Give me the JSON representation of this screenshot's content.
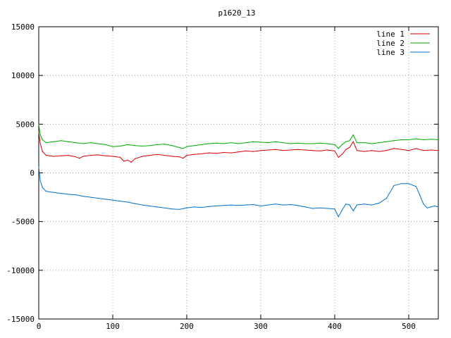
{
  "chart_data": {
    "type": "line",
    "title": "p1620_13",
    "xlabel": "",
    "ylabel": "",
    "xlim": [
      0,
      540
    ],
    "ylim": [
      -15000,
      15000
    ],
    "xticks": [
      0,
      100,
      200,
      300,
      400,
      500
    ],
    "yticks": [
      -15000,
      -10000,
      -5000,
      0,
      5000,
      10000,
      15000
    ],
    "grid": true,
    "legend_position": "top-right",
    "series": [
      {
        "name": "line 1",
        "color": "#dd0000",
        "points": [
          [
            0,
            4200
          ],
          [
            2,
            3000
          ],
          [
            5,
            2200
          ],
          [
            10,
            1800
          ],
          [
            20,
            1700
          ],
          [
            30,
            1750
          ],
          [
            40,
            1800
          ],
          [
            50,
            1650
          ],
          [
            55,
            1500
          ],
          [
            60,
            1700
          ],
          [
            70,
            1800
          ],
          [
            80,
            1850
          ],
          [
            90,
            1750
          ],
          [
            100,
            1700
          ],
          [
            110,
            1600
          ],
          [
            115,
            1200
          ],
          [
            120,
            1300
          ],
          [
            125,
            1100
          ],
          [
            130,
            1450
          ],
          [
            140,
            1700
          ],
          [
            150,
            1800
          ],
          [
            160,
            1900
          ],
          [
            170,
            1800
          ],
          [
            180,
            1700
          ],
          [
            190,
            1650
          ],
          [
            195,
            1500
          ],
          [
            200,
            1800
          ],
          [
            210,
            1900
          ],
          [
            220,
            1950
          ],
          [
            230,
            2050
          ],
          [
            240,
            2000
          ],
          [
            250,
            2100
          ],
          [
            260,
            2050
          ],
          [
            270,
            2150
          ],
          [
            280,
            2250
          ],
          [
            290,
            2200
          ],
          [
            300,
            2300
          ],
          [
            310,
            2350
          ],
          [
            320,
            2400
          ],
          [
            330,
            2300
          ],
          [
            340,
            2350
          ],
          [
            350,
            2400
          ],
          [
            360,
            2350
          ],
          [
            370,
            2300
          ],
          [
            380,
            2250
          ],
          [
            390,
            2350
          ],
          [
            400,
            2250
          ],
          [
            405,
            1600
          ],
          [
            410,
            1900
          ],
          [
            415,
            2400
          ],
          [
            420,
            2600
          ],
          [
            425,
            3200
          ],
          [
            430,
            2300
          ],
          [
            440,
            2200
          ],
          [
            450,
            2300
          ],
          [
            460,
            2200
          ],
          [
            470,
            2300
          ],
          [
            480,
            2500
          ],
          [
            490,
            2400
          ],
          [
            500,
            2300
          ],
          [
            510,
            2500
          ],
          [
            520,
            2300
          ],
          [
            530,
            2350
          ],
          [
            540,
            2300
          ]
        ]
      },
      {
        "name": "line 2",
        "color": "#00aa00",
        "points": [
          [
            0,
            5000
          ],
          [
            2,
            3900
          ],
          [
            5,
            3400
          ],
          [
            10,
            3100
          ],
          [
            20,
            3200
          ],
          [
            30,
            3300
          ],
          [
            40,
            3200
          ],
          [
            50,
            3100
          ],
          [
            60,
            3000
          ],
          [
            70,
            3100
          ],
          [
            80,
            3000
          ],
          [
            90,
            2900
          ],
          [
            100,
            2700
          ],
          [
            110,
            2750
          ],
          [
            120,
            2900
          ],
          [
            130,
            2800
          ],
          [
            140,
            2750
          ],
          [
            150,
            2800
          ],
          [
            160,
            2900
          ],
          [
            170,
            2950
          ],
          [
            180,
            2800
          ],
          [
            190,
            2600
          ],
          [
            195,
            2500
          ],
          [
            200,
            2700
          ],
          [
            210,
            2800
          ],
          [
            220,
            2900
          ],
          [
            230,
            3000
          ],
          [
            240,
            3050
          ],
          [
            250,
            3000
          ],
          [
            260,
            3100
          ],
          [
            270,
            3000
          ],
          [
            280,
            3100
          ],
          [
            290,
            3200
          ],
          [
            300,
            3150
          ],
          [
            310,
            3100
          ],
          [
            320,
            3200
          ],
          [
            330,
            3100
          ],
          [
            340,
            3000
          ],
          [
            350,
            3050
          ],
          [
            360,
            3000
          ],
          [
            370,
            3000
          ],
          [
            380,
            3050
          ],
          [
            390,
            3000
          ],
          [
            400,
            2900
          ],
          [
            405,
            2500
          ],
          [
            410,
            2900
          ],
          [
            415,
            3200
          ],
          [
            420,
            3300
          ],
          [
            425,
            3900
          ],
          [
            430,
            3100
          ],
          [
            440,
            3100
          ],
          [
            450,
            3000
          ],
          [
            460,
            3100
          ],
          [
            470,
            3200
          ],
          [
            480,
            3300
          ],
          [
            490,
            3400
          ],
          [
            500,
            3400
          ],
          [
            510,
            3500
          ],
          [
            520,
            3400
          ],
          [
            530,
            3450
          ],
          [
            540,
            3400
          ]
        ]
      },
      {
        "name": "line 3",
        "color": "#0070cc",
        "points": [
          [
            0,
            600
          ],
          [
            2,
            -800
          ],
          [
            5,
            -1500
          ],
          [
            10,
            -1900
          ],
          [
            20,
            -2000
          ],
          [
            30,
            -2100
          ],
          [
            40,
            -2200
          ],
          [
            50,
            -2250
          ],
          [
            60,
            -2400
          ],
          [
            70,
            -2500
          ],
          [
            80,
            -2600
          ],
          [
            90,
            -2700
          ],
          [
            100,
            -2800
          ],
          [
            110,
            -2900
          ],
          [
            120,
            -3000
          ],
          [
            130,
            -3150
          ],
          [
            140,
            -3300
          ],
          [
            150,
            -3400
          ],
          [
            160,
            -3500
          ],
          [
            170,
            -3600
          ],
          [
            180,
            -3700
          ],
          [
            190,
            -3750
          ],
          [
            200,
            -3600
          ],
          [
            210,
            -3500
          ],
          [
            220,
            -3550
          ],
          [
            230,
            -3450
          ],
          [
            240,
            -3400
          ],
          [
            250,
            -3350
          ],
          [
            260,
            -3300
          ],
          [
            270,
            -3350
          ],
          [
            280,
            -3300
          ],
          [
            290,
            -3250
          ],
          [
            300,
            -3400
          ],
          [
            310,
            -3300
          ],
          [
            320,
            -3200
          ],
          [
            330,
            -3300
          ],
          [
            340,
            -3250
          ],
          [
            350,
            -3350
          ],
          [
            360,
            -3500
          ],
          [
            370,
            -3650
          ],
          [
            380,
            -3600
          ],
          [
            390,
            -3650
          ],
          [
            400,
            -3700
          ],
          [
            405,
            -4500
          ],
          [
            410,
            -3800
          ],
          [
            415,
            -3200
          ],
          [
            420,
            -3300
          ],
          [
            425,
            -3900
          ],
          [
            430,
            -3300
          ],
          [
            440,
            -3200
          ],
          [
            450,
            -3300
          ],
          [
            460,
            -3100
          ],
          [
            470,
            -2600
          ],
          [
            480,
            -1300
          ],
          [
            490,
            -1100
          ],
          [
            500,
            -1100
          ],
          [
            510,
            -1400
          ],
          [
            515,
            -2300
          ],
          [
            520,
            -3200
          ],
          [
            525,
            -3600
          ],
          [
            530,
            -3500
          ],
          [
            535,
            -3400
          ],
          [
            540,
            -3500
          ]
        ]
      }
    ]
  }
}
